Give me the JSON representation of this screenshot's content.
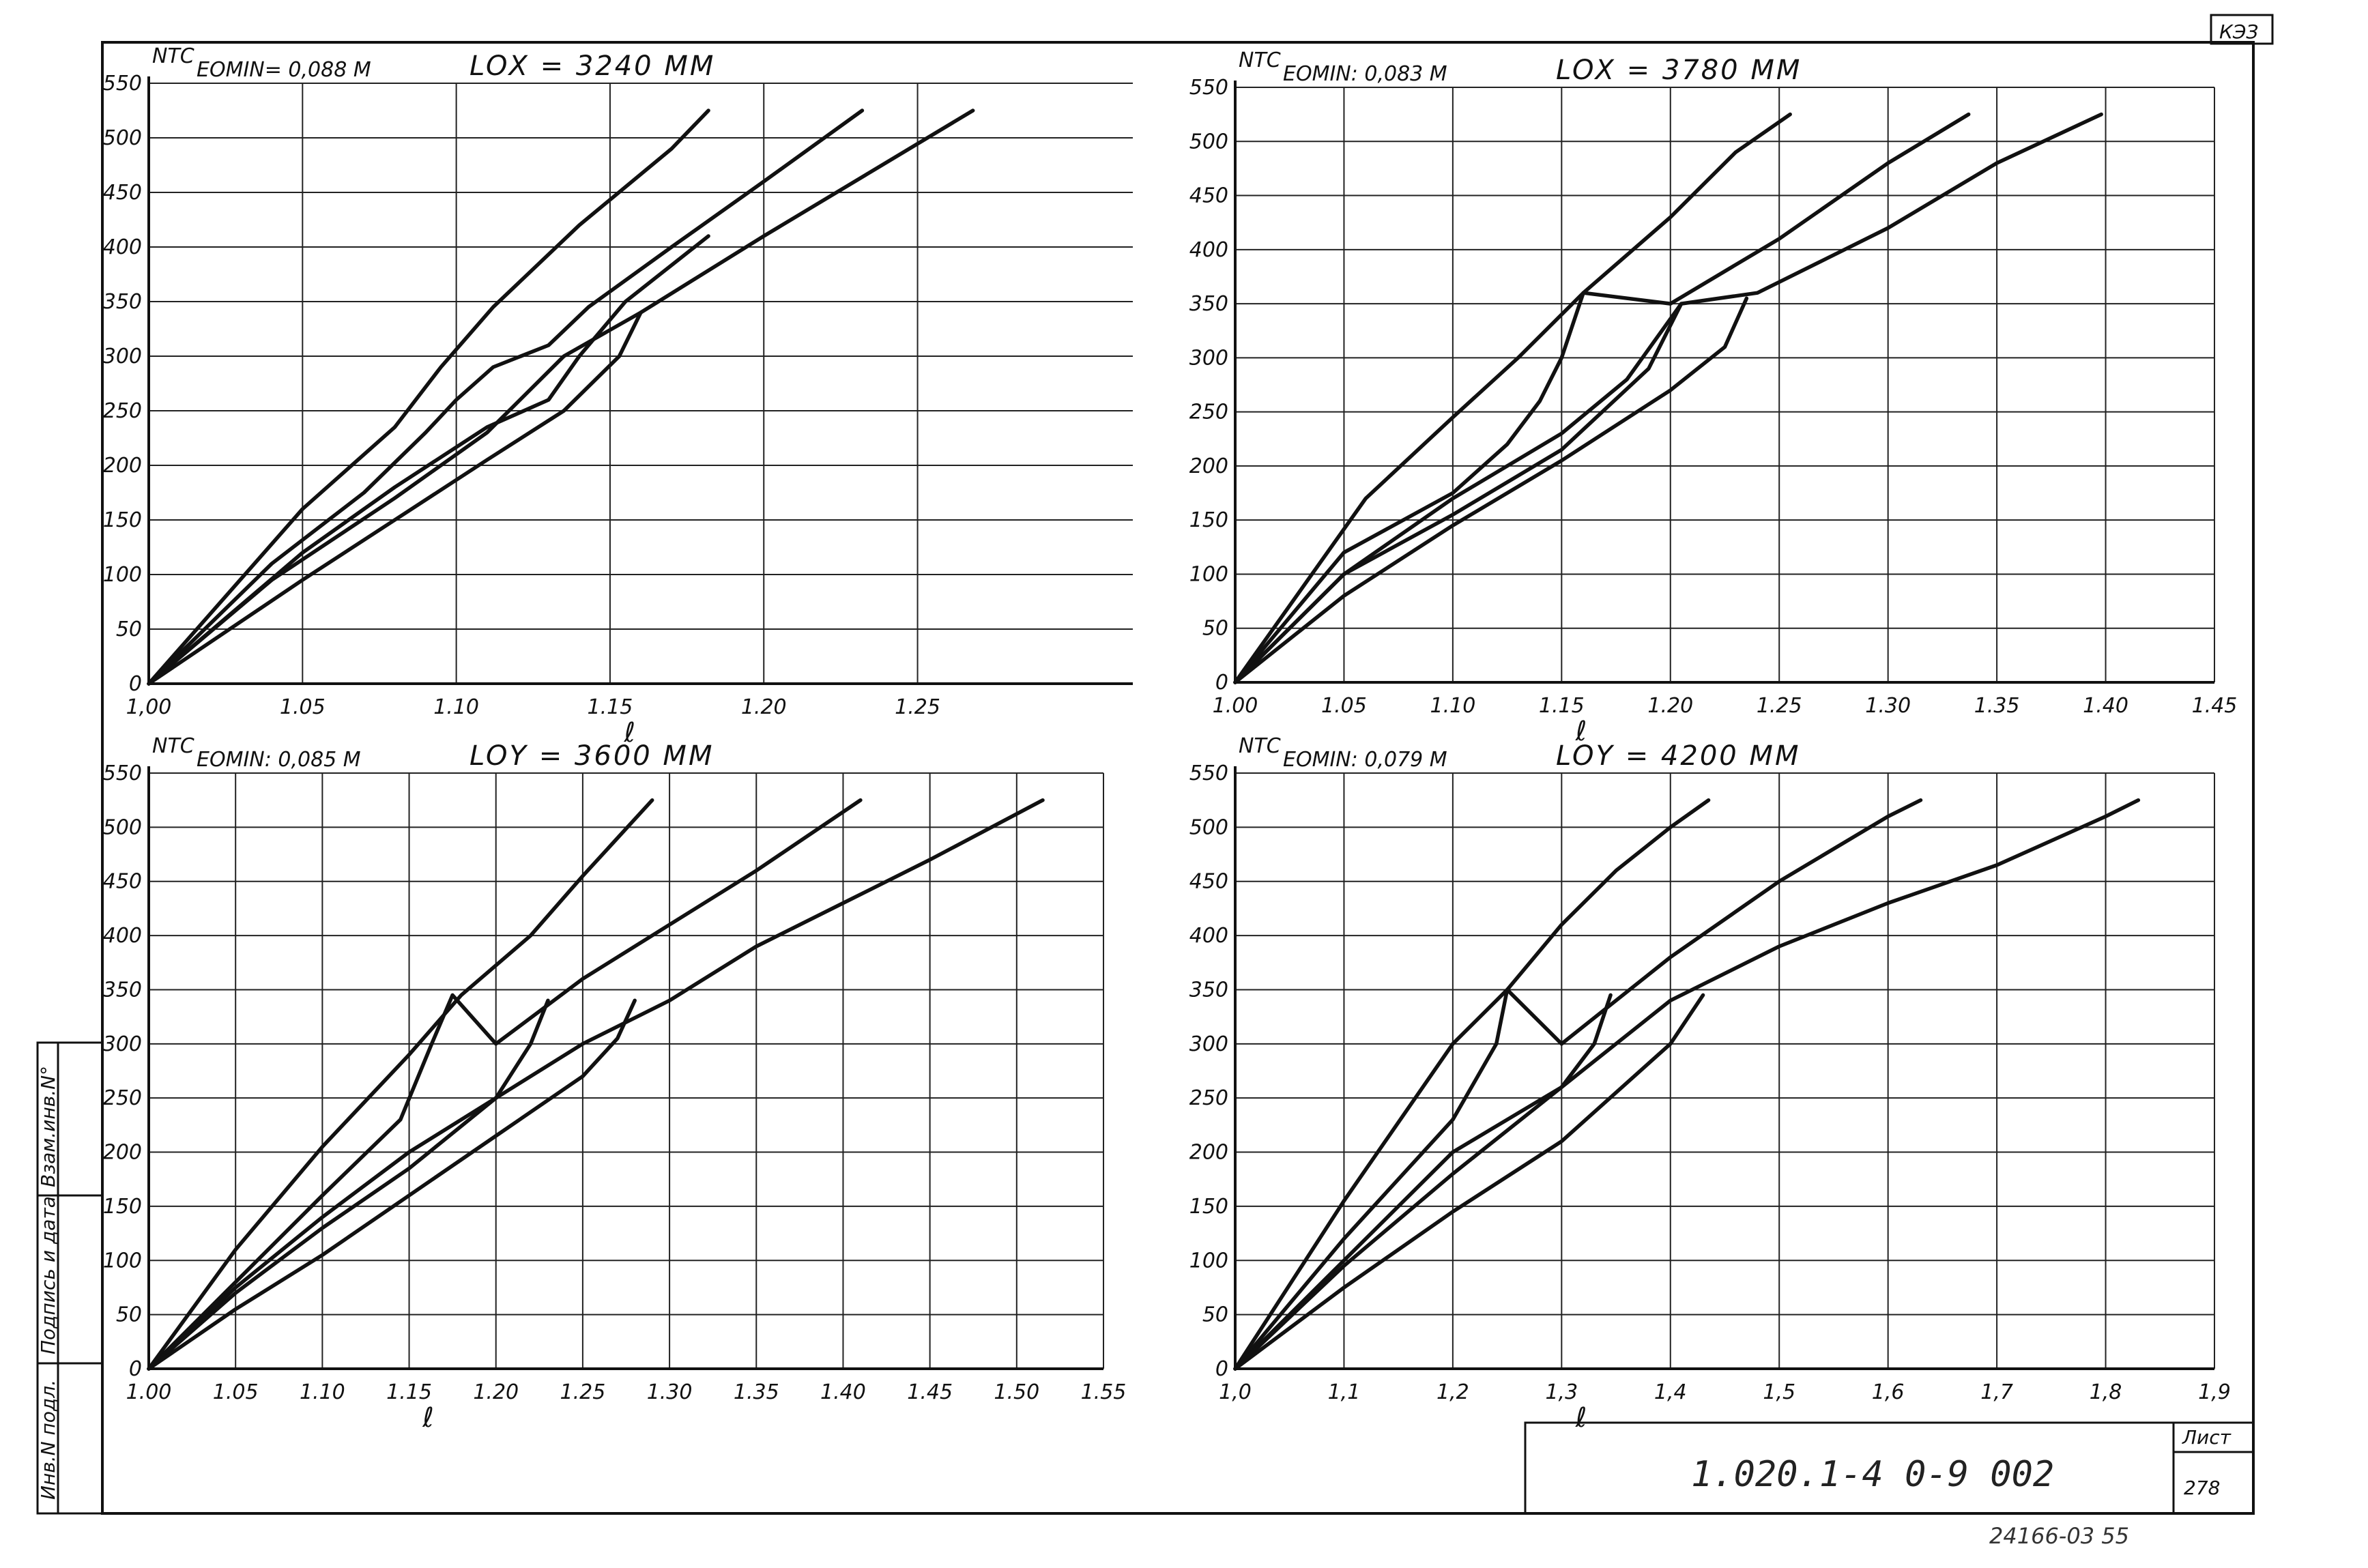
{
  "sheet": {
    "corner_mark": "КЭЗ",
    "stamp": {
      "designation": "1.020.1-4  0-9  002",
      "sheet_label": "Лист",
      "sheet_number": "278"
    },
    "archive_number": "24166-03 55",
    "side_labels": [
      "Инв.N подл.",
      "Подпись и дата",
      "Взам.инв.N°"
    ]
  },
  "chart_data": [
    {
      "type": "line",
      "y_label": "NTC",
      "emin_label": "EOMIN= 0,088 M",
      "length_label": "LOX = 3240 MM",
      "xlabel": "ℓ",
      "xlim": [
        1.0,
        1.32
      ],
      "ylim": [
        0,
        550
      ],
      "x_ticks": [
        1.0,
        1.05,
        1.1,
        1.15,
        1.2,
        1.25
      ],
      "x_tick_labels": [
        "1,00",
        "1.05",
        "1.10",
        "1.15",
        "1.20",
        "1.25"
      ],
      "y_ticks": [
        0,
        50,
        100,
        150,
        200,
        250,
        300,
        350,
        400,
        450,
        500,
        550
      ],
      "grid": true,
      "series": [
        {
          "x": [
            1.0,
            1.05,
            1.08,
            1.095,
            1.112,
            1.14,
            1.17,
            1.182
          ],
          "y": [
            0,
            160,
            235,
            290,
            345,
            420,
            490,
            525
          ]
        },
        {
          "x": [
            1.0,
            1.04,
            1.07,
            1.09,
            1.1,
            1.112,
            1.13,
            1.143,
            1.17,
            1.2,
            1.232
          ],
          "y": [
            0,
            110,
            175,
            230,
            260,
            290,
            310,
            345,
            400,
            460,
            525
          ]
        },
        {
          "x": [
            1.0,
            1.04,
            1.08,
            1.11,
            1.135,
            1.16,
            1.2,
            1.268
          ],
          "y": [
            0,
            95,
            170,
            230,
            300,
            340,
            410,
            525
          ]
        },
        {
          "x": [
            1.0,
            1.05,
            1.08,
            1.11,
            1.13,
            1.14,
            1.155,
            1.182
          ],
          "y": [
            0,
            120,
            180,
            235,
            260,
            300,
            350,
            410
          ]
        },
        {
          "x": [
            1.0,
            1.05,
            1.08,
            1.11,
            1.135,
            1.153,
            1.16
          ],
          "y": [
            0,
            95,
            150,
            205,
            250,
            300,
            340
          ]
        }
      ]
    },
    {
      "type": "line",
      "y_label": "NTC",
      "emin_label": "EOMIN: 0,083 M",
      "length_label": "LOX = 3780 MM",
      "xlabel": "ℓ",
      "xlim": [
        1.0,
        1.45
      ],
      "ylim": [
        0,
        550
      ],
      "x_ticks": [
        1.0,
        1.05,
        1.1,
        1.15,
        1.2,
        1.25,
        1.3,
        1.35,
        1.4,
        1.45
      ],
      "x_tick_labels": [
        "1.00",
        "1.05",
        "1.10",
        "1.15",
        "1.20",
        "1.25",
        "1.30",
        "1.35",
        "1.40",
        "1.45"
      ],
      "y_ticks": [
        0,
        50,
        100,
        150,
        200,
        250,
        300,
        350,
        400,
        450,
        500,
        550
      ],
      "grid": true,
      "series": [
        {
          "x": [
            1.0,
            1.06,
            1.1,
            1.13,
            1.16,
            1.2,
            1.23,
            1.255
          ],
          "y": [
            0,
            170,
            245,
            300,
            360,
            430,
            490,
            525
          ]
        },
        {
          "x": [
            1.0,
            1.05,
            1.1,
            1.125,
            1.14,
            1.15,
            1.16,
            1.2,
            1.25,
            1.3,
            1.337
          ],
          "y": [
            0,
            120,
            175,
            220,
            260,
            300,
            360,
            350,
            410,
            480,
            525
          ]
        },
        {
          "x": [
            1.0,
            1.05,
            1.1,
            1.15,
            1.18,
            1.205,
            1.24,
            1.3,
            1.35,
            1.398
          ],
          "y": [
            0,
            100,
            170,
            230,
            280,
            350,
            360,
            420,
            480,
            525
          ]
        },
        {
          "x": [
            1.0,
            1.05,
            1.1,
            1.15,
            1.19,
            1.205
          ],
          "y": [
            0,
            100,
            155,
            215,
            290,
            350
          ]
        },
        {
          "x": [
            1.0,
            1.05,
            1.1,
            1.15,
            1.2,
            1.225,
            1.235
          ],
          "y": [
            0,
            80,
            145,
            205,
            270,
            310,
            355
          ]
        }
      ]
    },
    {
      "type": "line",
      "y_label": "NTC",
      "emin_label": "EOMIN: 0,085 M",
      "length_label": "LOY = 3600 MM",
      "xlabel": "ℓ",
      "xlim": [
        1.0,
        1.55
      ],
      "ylim": [
        0,
        550
      ],
      "x_ticks": [
        1.0,
        1.05,
        1.1,
        1.15,
        1.2,
        1.25,
        1.3,
        1.35,
        1.4,
        1.45,
        1.5,
        1.55
      ],
      "x_tick_labels": [
        "1.00",
        "1.05",
        "1.10",
        "1.15",
        "1.20",
        "1.25",
        "1.30",
        "1.35",
        "1.40",
        "1.45",
        "1.50",
        "1.55"
      ],
      "y_ticks": [
        0,
        50,
        100,
        150,
        200,
        250,
        300,
        350,
        400,
        450,
        500,
        550
      ],
      "grid": true,
      "series": [
        {
          "x": [
            1.0,
            1.05,
            1.1,
            1.15,
            1.18,
            1.22,
            1.25,
            1.29
          ],
          "y": [
            0,
            110,
            205,
            290,
            345,
            400,
            455,
            525
          ]
        },
        {
          "x": [
            1.0,
            1.05,
            1.1,
            1.145,
            1.163,
            1.175,
            1.2,
            1.25,
            1.3,
            1.35,
            1.41
          ],
          "y": [
            0,
            80,
            160,
            230,
            300,
            345,
            300,
            360,
            410,
            460,
            525
          ]
        },
        {
          "x": [
            1.0,
            1.05,
            1.1,
            1.15,
            1.2,
            1.25,
            1.3,
            1.35,
            1.4,
            1.45,
            1.515
          ],
          "y": [
            0,
            75,
            140,
            200,
            250,
            300,
            340,
            390,
            430,
            470,
            525
          ]
        },
        {
          "x": [
            1.0,
            1.05,
            1.1,
            1.15,
            1.2,
            1.22,
            1.23
          ],
          "y": [
            0,
            70,
            130,
            185,
            250,
            300,
            340
          ]
        },
        {
          "x": [
            1.0,
            1.05,
            1.1,
            1.15,
            1.2,
            1.25,
            1.27,
            1.28
          ],
          "y": [
            0,
            55,
            105,
            160,
            215,
            270,
            305,
            340
          ]
        }
      ]
    },
    {
      "type": "line",
      "y_label": "NTC",
      "emin_label": "EOMIN: 0,079 M",
      "length_label": "LOY = 4200 MM",
      "xlabel": "ℓ",
      "xlim": [
        1.0,
        1.9
      ],
      "ylim": [
        0,
        550
      ],
      "x_ticks": [
        1.0,
        1.1,
        1.2,
        1.3,
        1.4,
        1.5,
        1.6,
        1.7,
        1.8,
        1.9
      ],
      "x_tick_labels": [
        "1,0",
        "1,1",
        "1,2",
        "1,3",
        "1,4",
        "1,5",
        "1,6",
        "1,7",
        "1,8",
        "1,9"
      ],
      "y_ticks": [
        0,
        50,
        100,
        150,
        200,
        250,
        300,
        350,
        400,
        450,
        500,
        550
      ],
      "grid": true,
      "series": [
        {
          "x": [
            1.0,
            1.1,
            1.2,
            1.25,
            1.3,
            1.35,
            1.4,
            1.435
          ],
          "y": [
            0,
            155,
            300,
            350,
            410,
            460,
            500,
            525
          ]
        },
        {
          "x": [
            1.0,
            1.1,
            1.2,
            1.24,
            1.25,
            1.3,
            1.4,
            1.5,
            1.6,
            1.63
          ],
          "y": [
            0,
            120,
            230,
            300,
            350,
            300,
            380,
            450,
            510,
            525
          ]
        },
        {
          "x": [
            1.0,
            1.1,
            1.2,
            1.3,
            1.4,
            1.5,
            1.6,
            1.7,
            1.8,
            1.83
          ],
          "y": [
            0,
            100,
            200,
            260,
            340,
            390,
            430,
            465,
            510,
            525
          ]
        },
        {
          "x": [
            1.0,
            1.1,
            1.2,
            1.3,
            1.33,
            1.345
          ],
          "y": [
            0,
            95,
            180,
            260,
            300,
            345
          ]
        },
        {
          "x": [
            1.0,
            1.1,
            1.2,
            1.3,
            1.4,
            1.43
          ],
          "y": [
            0,
            75,
            145,
            210,
            300,
            345
          ]
        }
      ]
    }
  ]
}
